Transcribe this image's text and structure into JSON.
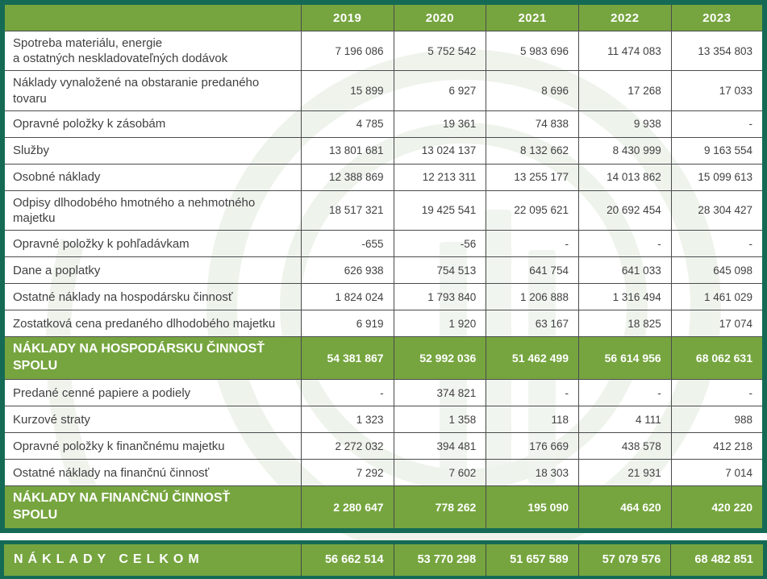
{
  "colors": {
    "header_green": "#76a53f",
    "outer_border_teal": "#146a55",
    "grid_line": "#4a4b4d",
    "body_text": "#414042",
    "total_text": "#ffffff",
    "watermark_tint": "#edf2ea"
  },
  "table": {
    "corner_label": "",
    "columns": [
      "2019",
      "2020",
      "2021",
      "2022",
      "2023"
    ],
    "rows": [
      {
        "type": "data",
        "label": "Spotreba materiálu, energie\na ostatných neskladovateľných dodávok",
        "values": [
          "7 196 086",
          "5 752 542",
          "5 983 696",
          "11 474 083",
          "13 354 803"
        ]
      },
      {
        "type": "data",
        "label": "Náklady vynaložené na obstaranie predaného\ntovaru",
        "values": [
          "15 899",
          "6 927",
          "8 696",
          "17 268",
          "17 033"
        ]
      },
      {
        "type": "data",
        "label": "Opravné položky k zásobám",
        "values": [
          "4 785",
          "19 361",
          "74 838",
          "9 938",
          "-"
        ]
      },
      {
        "type": "data",
        "label": "Služby",
        "values": [
          "13 801 681",
          "13 024 137",
          "8 132 662",
          "8 430 999",
          "9 163 554"
        ]
      },
      {
        "type": "data",
        "label": "Osobné náklady",
        "values": [
          "12 388 869",
          "12 213 311",
          "13 255 177",
          "14 013 862",
          "15 099 613"
        ]
      },
      {
        "type": "data",
        "label": "Odpisy dlhodobého hmotného a nehmotného\nmajetku",
        "values": [
          "18 517 321",
          "19 425 541",
          "22 095 621",
          "20 692 454",
          "28 304 427"
        ]
      },
      {
        "type": "data",
        "label": "Opravné položky k pohľadávkam",
        "values": [
          "-655",
          "-56",
          "-",
          "-",
          "-"
        ]
      },
      {
        "type": "data",
        "label": "Dane a poplatky",
        "values": [
          "626 938",
          "754 513",
          "641 754",
          "641 033",
          "645 098"
        ]
      },
      {
        "type": "data",
        "label": "Ostatné náklady na hospodársku činnosť",
        "values": [
          "1 824 024",
          "1 793 840",
          "1 206 888",
          "1 316 494",
          "1 461 029"
        ]
      },
      {
        "type": "data",
        "label": "Zostatková cena predaného dlhodobého majetku",
        "values": [
          "6 919",
          "1 920",
          "63 167",
          "18 825",
          "17 074"
        ]
      },
      {
        "type": "total",
        "label": "NÁKLADY NA HOSPODÁRSKU ČINNOSŤ\nSPOLU",
        "values": [
          "54 381 867",
          "52 992 036",
          "51 462 499",
          "56 614 956",
          "68 062 631"
        ]
      },
      {
        "type": "data",
        "label": "Predané cenné papiere a podiely",
        "values": [
          "-",
          "374 821",
          "-",
          "-",
          "-"
        ]
      },
      {
        "type": "data",
        "label": "Kurzové straty",
        "values": [
          "1 323",
          "1 358",
          "118",
          "4 111",
          "988"
        ]
      },
      {
        "type": "data",
        "label": "Opravné položky k finančnému majetku",
        "values": [
          "2 272 032",
          "394 481",
          "176 669",
          "438 578",
          "412 218"
        ]
      },
      {
        "type": "data",
        "label": "Ostatné náklady na finančnú činnosť",
        "values": [
          "7 292",
          "7 602",
          "18 303",
          "21 931",
          "7 014"
        ]
      },
      {
        "type": "total",
        "label": "NÁKLADY NA FINANČNÚ ČINNOSŤ\nSPOLU",
        "values": [
          "2 280 647",
          "778 262",
          "195 090",
          "464 620",
          "420 220"
        ]
      }
    ],
    "grand_total": {
      "label": "NÁKLADY CELKOM",
      "values": [
        "56 662 514",
        "53 770 298",
        "51 657 589",
        "57 079 576",
        "68 482 851"
      ]
    }
  }
}
